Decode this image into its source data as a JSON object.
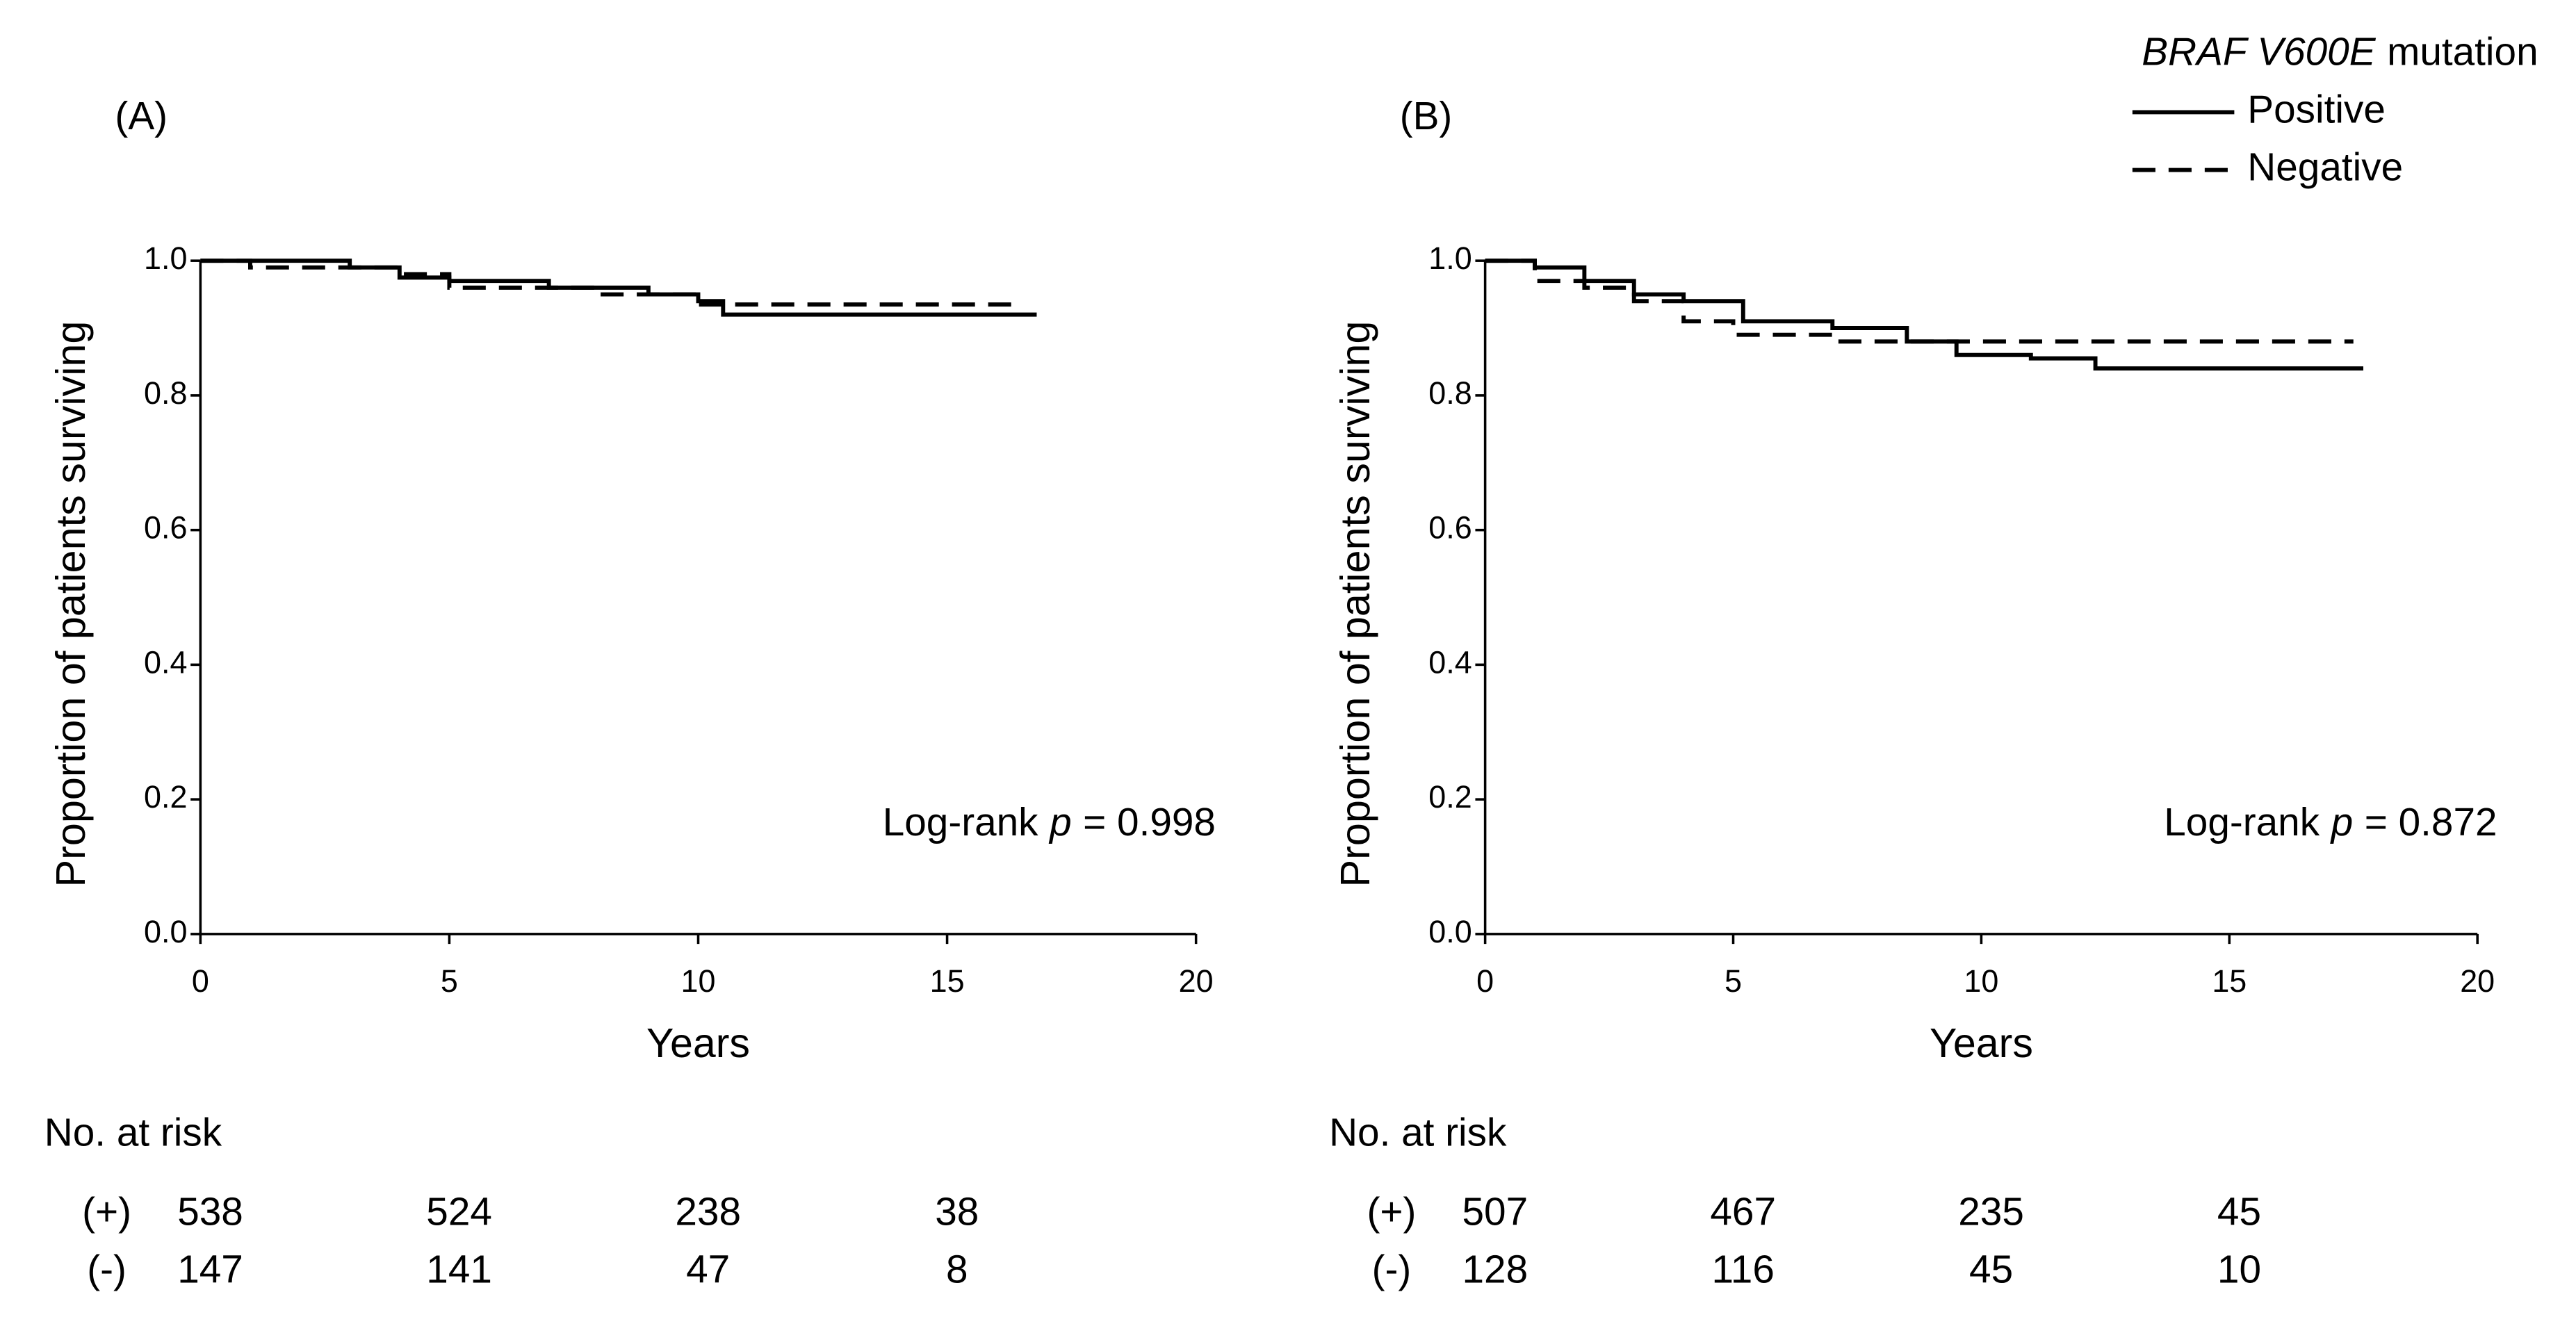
{
  "chart_data": [
    {
      "type": "line",
      "panel": "(A)",
      "xlabel": "Years",
      "ylabel": "Proportion of patients surviving",
      "xlim": [
        0,
        20
      ],
      "xticks": [
        0,
        5,
        10,
        15,
        20
      ],
      "ylim": [
        0,
        1
      ],
      "yticks": [
        {
          "value": 0,
          "label": "0.0"
        },
        0.2,
        0.4,
        0.6,
        0.8,
        {
          "value": 1,
          "label": "1.0"
        }
      ],
      "step": true,
      "series": [
        {
          "color": "#000000",
          "dash": false,
          "x": [
            0,
            3,
            4,
            5,
            7,
            9,
            10,
            10.5,
            16.8
          ],
          "values": [
            1,
            0.99,
            0.975,
            0.97,
            0.96,
            0.95,
            0.94,
            0.92,
            0.92
          ]
        },
        {
          "color": "#000000",
          "dash": true,
          "x": [
            0,
            1,
            4,
            5,
            8,
            10,
            16.5
          ],
          "values": [
            1,
            0.99,
            0.98,
            0.96,
            0.95,
            0.935,
            0.935
          ]
        }
      ],
      "annotation": {
        "before": "Log-rank",
        "italic": "p",
        "after": "= 0.998"
      },
      "risk_table": {
        "title": "No. at risk",
        "x": [
          0,
          5,
          10,
          15
        ],
        "rows": [
          {
            "label": "(+)",
            "values": [
              538,
              524,
              238,
              38
            ]
          },
          {
            "label": "(-)",
            "values": [
              147,
              141,
              47,
              8
            ]
          }
        ]
      }
    },
    {
      "type": "line",
      "panel": "(B)",
      "xlabel": "Years",
      "ylabel": "Proportion of patients surviving",
      "xlim": [
        0,
        20
      ],
      "xticks": [
        0,
        5,
        10,
        15,
        20
      ],
      "ylim": [
        0,
        1
      ],
      "yticks": [
        {
          "value": 0,
          "label": "0.0"
        },
        0.2,
        0.4,
        0.6,
        0.8,
        {
          "value": 1,
          "label": "1.0"
        }
      ],
      "step": true,
      "legend_title": {
        "italic": "BRAF V600E",
        "after": "mutation"
      },
      "series": [
        {
          "name": "Positive",
          "color": "#000000",
          "dash": false,
          "x": [
            0,
            1,
            2,
            3,
            4,
            5.2,
            7,
            8.5,
            9.5,
            11,
            12.3,
            17.7
          ],
          "values": [
            1,
            0.99,
            0.97,
            0.95,
            0.94,
            0.91,
            0.9,
            0.88,
            0.86,
            0.855,
            0.84,
            0.84
          ]
        },
        {
          "name": "Negative",
          "color": "#000000",
          "dash": true,
          "x": [
            0,
            1,
            2,
            3,
            4,
            5,
            7,
            17.5
          ],
          "values": [
            1,
            0.97,
            0.96,
            0.94,
            0.91,
            0.89,
            0.88,
            0.88
          ]
        }
      ],
      "annotation": {
        "before": "Log-rank",
        "italic": "p",
        "after": "= 0.872"
      },
      "risk_table": {
        "title": "No. at risk",
        "x": [
          0,
          5,
          10,
          15
        ],
        "rows": [
          {
            "label": "(+)",
            "values": [
              507,
              467,
              235,
              45
            ]
          },
          {
            "label": "(-)",
            "values": [
              128,
              116,
              45,
              10
            ]
          }
        ]
      }
    }
  ]
}
